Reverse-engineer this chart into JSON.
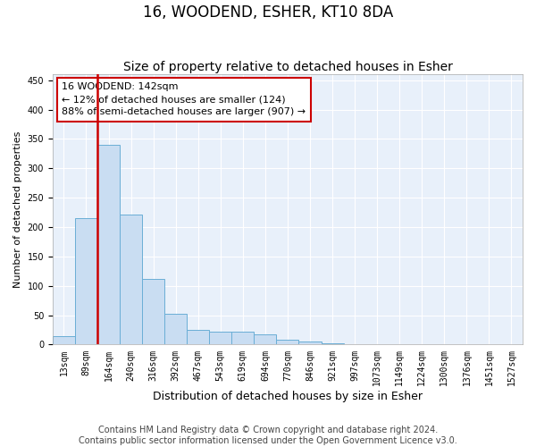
{
  "title": "16, WOODEND, ESHER, KT10 8DA",
  "subtitle": "Size of property relative to detached houses in Esher",
  "xlabel": "Distribution of detached houses by size in Esher",
  "ylabel": "Number of detached properties",
  "bar_labels": [
    "13sqm",
    "89sqm",
    "164sqm",
    "240sqm",
    "316sqm",
    "392sqm",
    "467sqm",
    "543sqm",
    "619sqm",
    "694sqm",
    "770sqm",
    "846sqm",
    "921sqm",
    "997sqm",
    "1073sqm",
    "1149sqm",
    "1224sqm",
    "1300sqm",
    "1376sqm",
    "1451sqm",
    "1527sqm"
  ],
  "bar_values": [
    15,
    215,
    340,
    222,
    112,
    52,
    25,
    22,
    22,
    18,
    8,
    6,
    2,
    1,
    0,
    0,
    0,
    0,
    0,
    0,
    0
  ],
  "bar_color": "#c9ddf2",
  "bar_edge_color": "#6aaed6",
  "vline_color": "#cc0000",
  "annotation_text": "16 WOODEND: 142sqm\n← 12% of detached houses are smaller (124)\n88% of semi-detached houses are larger (907) →",
  "annotation_box_facecolor": "#ffffff",
  "annotation_box_edgecolor": "#cc0000",
  "ylim": [
    0,
    460
  ],
  "yticks": [
    0,
    50,
    100,
    150,
    200,
    250,
    300,
    350,
    400,
    450
  ],
  "footer_text": "Contains HM Land Registry data © Crown copyright and database right 2024.\nContains public sector information licensed under the Open Government Licence v3.0.",
  "background_color": "#ffffff",
  "plot_background_color": "#e8f0fa",
  "grid_color": "#ffffff",
  "title_fontsize": 12,
  "subtitle_fontsize": 10,
  "xlabel_fontsize": 9,
  "ylabel_fontsize": 8,
  "tick_fontsize": 7,
  "footer_fontsize": 7,
  "annotation_fontsize": 8
}
